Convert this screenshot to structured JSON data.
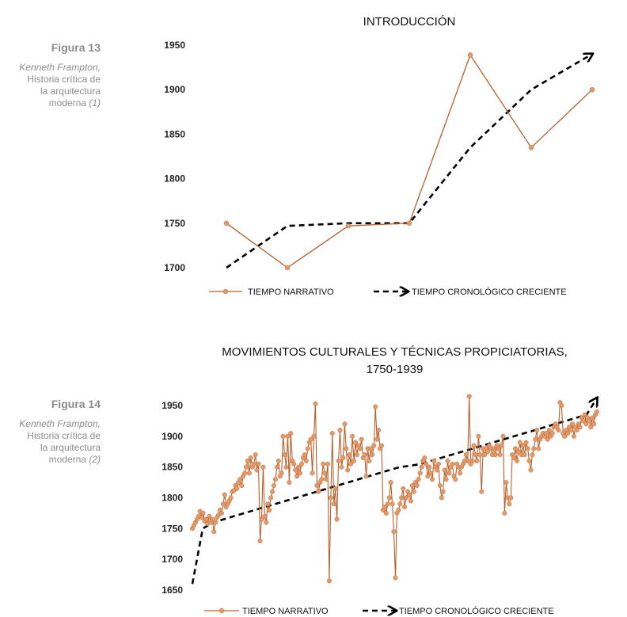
{
  "figures": [
    {
      "label": "Figura 13",
      "author": "Kenneth Frampton,",
      "book": "Historia crítica de la arquitectura moderna",
      "book_lines": [
        "Historia crítica de",
        "la arquitectura",
        "moderna"
      ],
      "note": "(1)"
    },
    {
      "label": "Figura 14",
      "author": "Kenneth Frampton,",
      "book": "Historia crítica de la arquitectura moderna",
      "book_lines": [
        "Historia crítica de",
        "la arquitectura",
        "moderna"
      ],
      "note": "(2)"
    }
  ],
  "colors": {
    "narrative": "#b5602b",
    "narrative_marker": "#e39a6a",
    "chronological": "#000000"
  },
  "chart_data": [
    {
      "type": "line",
      "title": "INTRODUCCIÓN",
      "title_lines": [
        "INTRODUCCIÓN"
      ],
      "xlabel": "",
      "ylabel": "",
      "ylim": [
        1700,
        1950
      ],
      "yticks": [
        1700,
        1750,
        1800,
        1850,
        1900,
        1950
      ],
      "x": [
        1,
        2,
        3,
        4,
        5,
        6,
        7
      ],
      "grid": false,
      "legend": "bottom",
      "series": [
        {
          "name": "TIEMPO NARRATIVO",
          "style": "solid-markers",
          "values": [
            1750,
            1700,
            1747,
            1750,
            1939,
            1835,
            1900
          ]
        },
        {
          "name": "TIEMPO CRONOLÓGICO CRECIENTE",
          "style": "dashed-arrow",
          "values": [
            1700,
            1747,
            1750,
            1750,
            1835,
            1900,
            1940
          ]
        }
      ]
    },
    {
      "type": "line",
      "title": "MOVIMIENTOS CULTURALES Y TÉCNICAS PROPICIATORIAS, 1750-1939",
      "title_lines": [
        "MOVIMIENTOS CULTURALES Y TÉCNICAS PROPICIATORIAS,",
        "1750-1939"
      ],
      "xlabel": "",
      "ylabel": "",
      "ylim": [
        1650,
        1950
      ],
      "yticks": [
        1650,
        1700,
        1750,
        1800,
        1850,
        1900,
        1950
      ],
      "grid": false,
      "legend": "bottom",
      "series": [
        {
          "name": "TIEMPO NARRATIVO",
          "style": "solid-markers",
          "values": [
            1750,
            1755,
            1760,
            1765,
            1770,
            1778,
            1768,
            1775,
            1762,
            1765,
            1758,
            1770,
            1760,
            1765,
            1745,
            1760,
            1768,
            1772,
            1780,
            1775,
            1790,
            1805,
            1785,
            1790,
            1795,
            1800,
            1810,
            1812,
            1820,
            1815,
            1825,
            1830,
            1820,
            1835,
            1840,
            1850,
            1860,
            1840,
            1865,
            1850,
            1855,
            1870,
            1845,
            1855,
            1730,
            1765,
            1850,
            1770,
            1760,
            1790,
            1780,
            1800,
            1810,
            1820,
            1830,
            1850,
            1860,
            1835,
            1840,
            1900,
            1870,
            1850,
            1900,
            1825,
            1905,
            1860,
            1855,
            1845,
            1835,
            1850,
            1840,
            1855,
            1865,
            1870,
            1860,
            1880,
            1890,
            1895,
            1840,
            1900,
            1953,
            1820,
            1810,
            1825,
            1830,
            1855,
            1840,
            1830,
            1855,
            1665,
            1800,
            1905,
            1790,
            1815,
            1765,
            1860,
            1910,
            1850,
            1865,
            1920,
            1880,
            1845,
            1870,
            1855,
            1900,
            1860,
            1890,
            1870,
            1885,
            1880,
            1895,
            1865,
            1870,
            1835,
            1880,
            1860,
            1880,
            1870,
            1885,
            1948,
            1895,
            1910,
            1880,
            1885,
            1780,
            1785,
            1775,
            1790,
            1800,
            1825,
            1790,
            1745,
            1670,
            1775,
            1780,
            1790,
            1800,
            1815,
            1785,
            1800,
            1810,
            1805,
            1795,
            1820,
            1810,
            1825,
            1820,
            1830,
            1840,
            1850,
            1860,
            1865,
            1855,
            1835,
            1850,
            1840,
            1830,
            1860,
            1850,
            1845,
            1855,
            1820,
            1800,
            1810,
            1845,
            1830,
            1860,
            1840,
            1850,
            1855,
            1835,
            1830,
            1855,
            1850,
            1840,
            1850,
            1855,
            1860,
            1870,
            1860,
            1965,
            1855,
            1860,
            1885,
            1870,
            1860,
            1900,
            1870,
            1810,
            1880,
            1870,
            1880,
            1875,
            1885,
            1880,
            1870,
            1880,
            1870,
            1885,
            1880,
            1870,
            1885,
            1900,
            1775,
            1825,
            1800,
            1790,
            1800,
            1870,
            1865,
            1880,
            1860,
            1875,
            1890,
            1870,
            1885,
            1870,
            1890,
            1880,
            1860,
            1845,
            1870,
            1880,
            1895,
            1910,
            1880,
            1895,
            1900,
            1905,
            1900,
            1905,
            1895,
            1910,
            1900,
            1905,
            1915,
            1920,
            1915,
            1910,
            1955,
            1950,
            1905,
            1900,
            1910,
            1905,
            1915,
            1910,
            1920,
            1900,
            1915,
            1910,
            1920,
            1915,
            1930,
            1925,
            1935,
            1920,
            1930,
            1925,
            1915,
            1930,
            1920,
            1935,
            1940
          ]
        },
        {
          "name": "TIEMPO CRONOLÓGICO CRECIENTE",
          "style": "dashed-arrow",
          "values": [
            1660,
            1750,
            1760,
            1765,
            1770,
            1775,
            1780,
            1785,
            1790,
            1795,
            1800,
            1805,
            1810,
            1815,
            1820,
            1825,
            1830,
            1835,
            1840,
            1845,
            1850,
            1852,
            1855,
            1860,
            1865,
            1870,
            1875,
            1880,
            1885,
            1890,
            1895,
            1900,
            1905,
            1910,
            1915,
            1920,
            1925,
            1930,
            1935,
            1962
          ]
        }
      ]
    }
  ]
}
